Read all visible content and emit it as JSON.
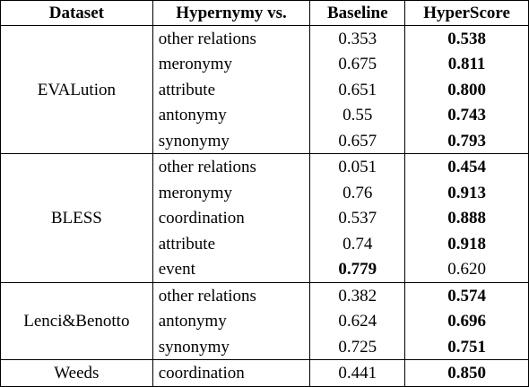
{
  "table": {
    "headers": [
      "Dataset",
      "Hypernymy vs.",
      "Baseline",
      "HyperScore"
    ],
    "groups": [
      {
        "dataset": "EVALution",
        "rows": [
          {
            "relation": "other relations",
            "baseline": "0.353",
            "hyperscore": "0.538",
            "best": "hyperscore"
          },
          {
            "relation": "meronymy",
            "baseline": "0.675",
            "hyperscore": "0.811",
            "best": "hyperscore"
          },
          {
            "relation": "attribute",
            "baseline": "0.651",
            "hyperscore": "0.800",
            "best": "hyperscore"
          },
          {
            "relation": "antonymy",
            "baseline": "0.55",
            "hyperscore": "0.743",
            "best": "hyperscore"
          },
          {
            "relation": "synonymy",
            "baseline": "0.657",
            "hyperscore": "0.793",
            "best": "hyperscore"
          }
        ]
      },
      {
        "dataset": "BLESS",
        "rows": [
          {
            "relation": "other relations",
            "baseline": "0.051",
            "hyperscore": "0.454",
            "best": "hyperscore"
          },
          {
            "relation": "meronymy",
            "baseline": "0.76",
            "hyperscore": "0.913",
            "best": "hyperscore"
          },
          {
            "relation": "coordination",
            "baseline": "0.537",
            "hyperscore": "0.888",
            "best": "hyperscore"
          },
          {
            "relation": "attribute",
            "baseline": "0.74",
            "hyperscore": "0.918",
            "best": "hyperscore"
          },
          {
            "relation": "event",
            "baseline": "0.779",
            "hyperscore": "0.620",
            "best": "baseline"
          }
        ]
      },
      {
        "dataset": "Lenci&Benotto",
        "rows": [
          {
            "relation": "other relations",
            "baseline": "0.382",
            "hyperscore": "0.574",
            "best": "hyperscore"
          },
          {
            "relation": "antonymy",
            "baseline": "0.624",
            "hyperscore": "0.696",
            "best": "hyperscore"
          },
          {
            "relation": "synonymy",
            "baseline": "0.725",
            "hyperscore": "0.751",
            "best": "hyperscore"
          }
        ]
      },
      {
        "dataset": "Weeds",
        "rows": [
          {
            "relation": "coordination",
            "baseline": "0.441",
            "hyperscore": "0.850",
            "best": "hyperscore"
          }
        ]
      }
    ]
  }
}
